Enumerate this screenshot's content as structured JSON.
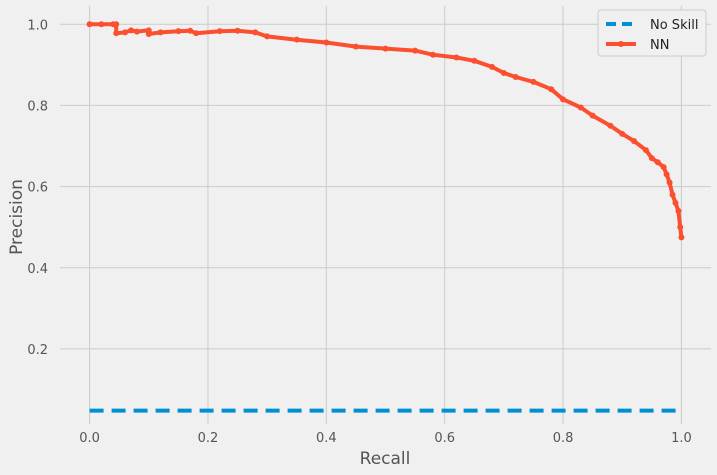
{
  "chart_data": {
    "type": "line",
    "title": "",
    "xlabel": "Recall",
    "ylabel": "Precision",
    "xlim": [
      -0.05,
      1.05
    ],
    "ylim": [
      0.015,
      1.045
    ],
    "grid": true,
    "legend_position": "top-right",
    "x_ticks": [
      "0.0",
      "0.2",
      "0.4",
      "0.6",
      "0.8",
      "1.0"
    ],
    "y_ticks": [
      "0.2",
      "0.4",
      "0.6",
      "0.8",
      "1.0"
    ],
    "colors": {
      "background": "#f0f0f0",
      "grid": "#cbcbcb",
      "no_skill": "#008fd5",
      "nn": "#fc4f30"
    },
    "series": [
      {
        "name": "No Skill",
        "style": "dashed",
        "color": "#008fd5",
        "x": [
          0.0,
          1.0
        ],
        "y": [
          0.048,
          0.048
        ]
      },
      {
        "name": "NN",
        "style": "solid-with-markers",
        "color": "#fc4f30",
        "x": [
          0.0,
          0.02,
          0.04,
          0.045,
          0.045,
          0.06,
          0.07,
          0.08,
          0.1,
          0.1,
          0.12,
          0.15,
          0.17,
          0.18,
          0.22,
          0.25,
          0.28,
          0.3,
          0.35,
          0.4,
          0.45,
          0.5,
          0.55,
          0.58,
          0.62,
          0.65,
          0.68,
          0.7,
          0.72,
          0.75,
          0.78,
          0.8,
          0.83,
          0.85,
          0.88,
          0.9,
          0.92,
          0.94,
          0.95,
          0.96,
          0.97,
          0.975,
          0.98,
          0.985,
          0.99,
          0.995,
          0.998,
          1.0
        ],
        "y": [
          1.0,
          1.0,
          1.0,
          1.0,
          0.978,
          0.98,
          0.985,
          0.982,
          0.985,
          0.976,
          0.98,
          0.983,
          0.984,
          0.978,
          0.983,
          0.984,
          0.98,
          0.97,
          0.962,
          0.955,
          0.945,
          0.94,
          0.935,
          0.925,
          0.918,
          0.91,
          0.895,
          0.88,
          0.87,
          0.858,
          0.84,
          0.815,
          0.795,
          0.775,
          0.75,
          0.73,
          0.712,
          0.69,
          0.67,
          0.66,
          0.648,
          0.63,
          0.61,
          0.58,
          0.56,
          0.54,
          0.5,
          0.475
        ]
      }
    ]
  }
}
